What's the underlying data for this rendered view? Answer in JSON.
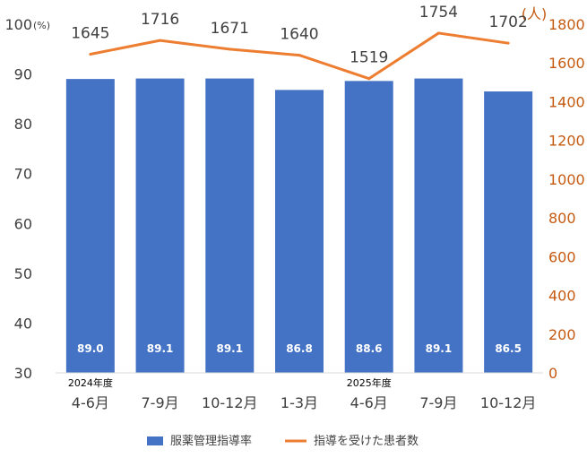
{
  "chart_data": {
    "type": "bar+line",
    "categories": [
      "4-6月",
      "7-9月",
      "10-12月",
      "1-3月",
      "4-6月",
      "7-9月",
      "10-12月"
    ],
    "year_labels": [
      {
        "category_index": 0,
        "label": "2024年度"
      },
      {
        "category_index": 4,
        "label": "2025年度"
      }
    ],
    "series": [
      {
        "name": "服薬管理指導率",
        "type": "bar",
        "axis": "left",
        "color": "#4472C4",
        "values": [
          89.0,
          89.1,
          89.1,
          86.8,
          88.6,
          89.1,
          86.5
        ],
        "labels": [
          "89.0",
          "89.1",
          "89.1",
          "86.8",
          "88.6",
          "89.1",
          "86.5"
        ]
      },
      {
        "name": "指導を受けた患者数",
        "type": "line",
        "axis": "right",
        "color": "#ED7D31",
        "values": [
          1645,
          1716,
          1671,
          1640,
          1519,
          1754,
          1702
        ],
        "labels": [
          "1645",
          "1716",
          "1671",
          "1640",
          "1519",
          "1754",
          "1702"
        ]
      }
    ],
    "y_left": {
      "unit": "(%)",
      "ylim": [
        30,
        100
      ],
      "ticks": [
        "30",
        "40",
        "50",
        "60",
        "70",
        "80",
        "90",
        "100"
      ],
      "color": "#404040"
    },
    "y_right": {
      "unit": "(人)",
      "ylim": [
        0,
        1800
      ],
      "ticks": [
        "0",
        "200",
        "400",
        "600",
        "800",
        "1000",
        "1200",
        "1400",
        "1600",
        "1800"
      ],
      "color": "#C55A11"
    },
    "grid": false,
    "legend": {
      "position": "bottom",
      "items": [
        {
          "label": "服薬管理指導率",
          "kind": "bar",
          "color": "#4472C4"
        },
        {
          "label": "指導を受けた患者数",
          "kind": "line",
          "color": "#ED7D31"
        }
      ]
    }
  }
}
